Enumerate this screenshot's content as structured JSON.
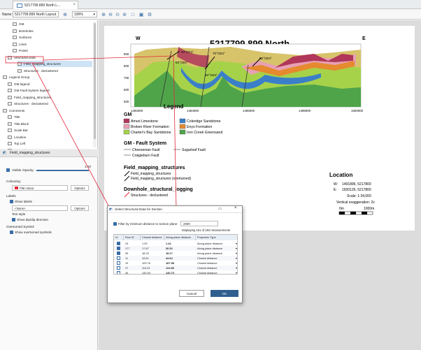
{
  "tab": {
    "title": "5217799.899 North L..."
  },
  "toolbar": {
    "name_label": "Name:",
    "name_value": "5217799.899 North Layout",
    "zoom_value": "100%"
  },
  "tree": {
    "items": [
      {
        "label": "GM",
        "indent": 2
      },
      {
        "label": "Boreholes",
        "indent": 2
      },
      {
        "label": "Surfaces",
        "indent": 2
      },
      {
        "label": "Lines",
        "indent": 2
      },
      {
        "label": "Points",
        "indent": 2
      },
      {
        "label": "Structural Data",
        "indent": 1
      },
      {
        "label": "Field_mapping_structures",
        "indent": 3,
        "selected": true
      },
      {
        "label": "Structures - declustered",
        "indent": 3
      },
      {
        "label": "Legend Group",
        "indent": 0
      },
      {
        "label": "GM legend",
        "indent": 1
      },
      {
        "label": "GM Fault System legend",
        "indent": 1
      },
      {
        "label": "Field_mapping_structures",
        "indent": 1
      },
      {
        "label": "Structures - declustered",
        "indent": 1
      },
      {
        "label": "Comments",
        "indent": 0
      },
      {
        "label": "Title",
        "indent": 1
      },
      {
        "label": "Title Block",
        "indent": 1
      },
      {
        "label": "Scale Bar",
        "indent": 1
      },
      {
        "label": "Location",
        "indent": 1
      },
      {
        "label": "Top Left",
        "indent": 1
      },
      {
        "label": "Top Right",
        "indent": 1
      }
    ]
  },
  "props": {
    "header": "Field_mapping_structures",
    "visible_label": "Visible",
    "opacity_label": "Opacity:",
    "opacity_value": "1.00",
    "colouring_label": "Colouring:",
    "colouring_value": "Flat colour",
    "options_label": "Options",
    "labels_label": "Labels",
    "show_labels": "Show labels",
    "labels_value": "<None>",
    "text_style_label": "Text style",
    "dip_direction": "Show dip/dip direction",
    "overturned_label": "Overturned Symbol",
    "show_overturned": "Show overturned symbols"
  },
  "section": {
    "title": "5217799.899 North",
    "west": "W",
    "east": "E",
    "y_ticks": [
      "900",
      "800",
      "700",
      "600",
      "500"
    ],
    "x_ticks": [
      "1492000",
      "1494000",
      "1496000",
      "1498000",
      "1500000"
    ],
    "annotations": [
      "43°/274°",
      "70°/324°",
      "85°/324°",
      "63°/302°",
      "50°/344°"
    ]
  },
  "legend": {
    "title": "Legend",
    "gm_title": "GM",
    "units": [
      {
        "label": "Amuri Limestone",
        "color": "#b0365a"
      },
      {
        "label": "Coleridge Sandstone",
        "color": "#3a7fc8"
      },
      {
        "label": "Broken River Formation",
        "color": "#e8a0b4"
      },
      {
        "label": "Enys Formation",
        "color": "#e58a2e"
      },
      {
        "label": "Charter's Bay Sandstone",
        "color": "#a6d24a"
      },
      {
        "label": "Iron Creek Greensand",
        "color": "#4fa44a"
      }
    ],
    "fault_title": "GM - Fault System",
    "faults": [
      "Cheeseman Fault",
      "Sugarloaf Fault",
      "Craigieburn Fault"
    ],
    "fms_title": "Field_mapping_structures",
    "fms_items": [
      "Field_mapping_structures",
      "Field_mapping_structures (overturned)"
    ],
    "dh_title": "Downhole_structural_logging",
    "dh_items": [
      "Structures - declustered"
    ]
  },
  "location": {
    "title": "Location",
    "w_label": "W:",
    "w_value": "1491896, 5217800",
    "e_label": "E:",
    "e_value": "1500126, 5217800",
    "scale": "Scale: 1:34,000",
    "vex": "Vertical exaggeration: 2x",
    "bar_start": "0m",
    "bar_end": "1000m"
  },
  "dialog": {
    "title": "Select Structural Data for Section",
    "filter_label": "Filter by minimum distance to section plane:",
    "filter_value": "2000",
    "count_text": "Displaying 101 of 184 measurements",
    "columns": [
      "Row ID",
      "Closest distance",
      "Along plane distance",
      "Projection Type"
    ],
    "rows": [
      {
        "checked": true,
        "id": "23",
        "closest": "1.09",
        "along": "1.44",
        "proj": "Along plane distance"
      },
      {
        "checked": true,
        "id": "177",
        "closest": "17.87",
        "along": "30.52",
        "proj": "Along plane distance"
      },
      {
        "checked": true,
        "id": "39",
        "closest": "18.25",
        "along": "18.27",
        "proj": "Along plane distance"
      },
      {
        "checked": false,
        "id": "11",
        "closest": "43.61",
        "along": "44.64",
        "proj": "Closest distance"
      },
      {
        "checked": false,
        "id": "19",
        "closest": "109.76",
        "along": "187.98",
        "proj": "Closest distance"
      },
      {
        "checked": false,
        "id": "27",
        "closest": "114.91",
        "along": "124.80",
        "proj": "Closest distance"
      },
      {
        "checked": false,
        "id": "26",
        "closest": "140.03",
        "along": "140.73",
        "proj": "Closest distance"
      }
    ],
    "cancel": "Cancel",
    "ok": "OK"
  },
  "colors": {
    "accent": "#3a6ea5",
    "annotation_red": "#e0283a",
    "selection": "#cfe3f7"
  }
}
